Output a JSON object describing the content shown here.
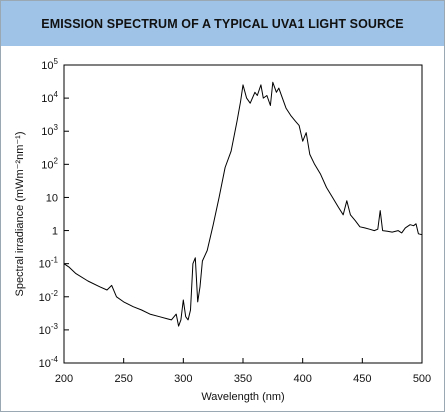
{
  "chart_data": {
    "type": "line",
    "title": "EMISSION SPECTRUM OF A TYPICAL UVA1 LIGHT SOURCE",
    "xlabel": "Wavelength (nm)",
    "ylabel": "Spectral irradiance (mWm⁻²nm⁻¹)",
    "xlim": [
      200,
      500
    ],
    "ylim": [
      0.0001,
      100000
    ],
    "yscale": "log",
    "grid": false,
    "x_ticks": [
      {
        "value": 200,
        "label": "200"
      },
      {
        "value": 250,
        "label": "250"
      },
      {
        "value": 300,
        "label": "300"
      },
      {
        "value": 350,
        "label": "350"
      },
      {
        "value": 400,
        "label": "400"
      },
      {
        "value": 450,
        "label": "450"
      },
      {
        "value": 500,
        "label": "500"
      }
    ],
    "y_ticks": [
      {
        "value": 100000,
        "base": "10",
        "exp": "5"
      },
      {
        "value": 10000,
        "base": "10",
        "exp": "4"
      },
      {
        "value": 1000,
        "base": "10",
        "exp": "3"
      },
      {
        "value": 100,
        "base": "10",
        "exp": "2"
      },
      {
        "value": 10,
        "base": "10",
        "exp": ""
      },
      {
        "value": 1,
        "base": "1",
        "exp": ""
      },
      {
        "value": 0.1,
        "base": "10",
        "exp": "-1"
      },
      {
        "value": 0.01,
        "base": "10",
        "exp": "-2"
      },
      {
        "value": 0.001,
        "base": "10",
        "exp": "-3"
      },
      {
        "value": 0.0001,
        "base": "10",
        "exp": "-4"
      }
    ],
    "series": [
      {
        "color": "#000000",
        "points": [
          [
            200,
            0.1
          ],
          [
            204,
            0.08
          ],
          [
            210,
            0.05
          ],
          [
            220,
            0.03
          ],
          [
            230,
            0.02
          ],
          [
            236,
            0.016
          ],
          [
            240,
            0.022
          ],
          [
            244,
            0.01
          ],
          [
            250,
            0.007
          ],
          [
            258,
            0.005
          ],
          [
            265,
            0.004
          ],
          [
            272,
            0.003
          ],
          [
            280,
            0.0025
          ],
          [
            286,
            0.0022
          ],
          [
            290,
            0.002
          ],
          [
            294,
            0.003
          ],
          [
            296,
            0.0013
          ],
          [
            298,
            0.002
          ],
          [
            300,
            0.008
          ],
          [
            302,
            0.0025
          ],
          [
            304,
            0.002
          ],
          [
            306,
            0.004
          ],
          [
            308,
            0.1
          ],
          [
            310,
            0.15
          ],
          [
            312,
            0.007
          ],
          [
            314,
            0.02
          ],
          [
            316,
            0.12
          ],
          [
            320,
            0.25
          ],
          [
            325,
            1.5
          ],
          [
            330,
            10
          ],
          [
            335,
            80
          ],
          [
            340,
            250
          ],
          [
            345,
            2000
          ],
          [
            348,
            8000
          ],
          [
            350,
            25000
          ],
          [
            353,
            10000
          ],
          [
            356,
            7000
          ],
          [
            360,
            15000
          ],
          [
            362,
            12000
          ],
          [
            365,
            25000
          ],
          [
            367,
            10000
          ],
          [
            370,
            12000
          ],
          [
            373,
            6000
          ],
          [
            375,
            30000
          ],
          [
            378,
            15000
          ],
          [
            380,
            20000
          ],
          [
            383,
            10000
          ],
          [
            386,
            5000
          ],
          [
            390,
            3000
          ],
          [
            394,
            2000
          ],
          [
            397,
            1500
          ],
          [
            400,
            500
          ],
          [
            403,
            900
          ],
          [
            406,
            200
          ],
          [
            410,
            100
          ],
          [
            415,
            50
          ],
          [
            420,
            20
          ],
          [
            425,
            10
          ],
          [
            430,
            5
          ],
          [
            434,
            3
          ],
          [
            437,
            8
          ],
          [
            440,
            3
          ],
          [
            444,
            2
          ],
          [
            448,
            1.3
          ],
          [
            452,
            1.2
          ],
          [
            456,
            1.1
          ],
          [
            460,
            1.0
          ],
          [
            463,
            1.1
          ],
          [
            465,
            4
          ],
          [
            467,
            1.0
          ],
          [
            471,
            0.95
          ],
          [
            475,
            0.9
          ],
          [
            480,
            1.0
          ],
          [
            483,
            0.85
          ],
          [
            486,
            1.2
          ],
          [
            490,
            1.5
          ],
          [
            493,
            1.4
          ],
          [
            495,
            1.6
          ],
          [
            497,
            0.8
          ],
          [
            500,
            0.75
          ]
        ]
      }
    ]
  }
}
